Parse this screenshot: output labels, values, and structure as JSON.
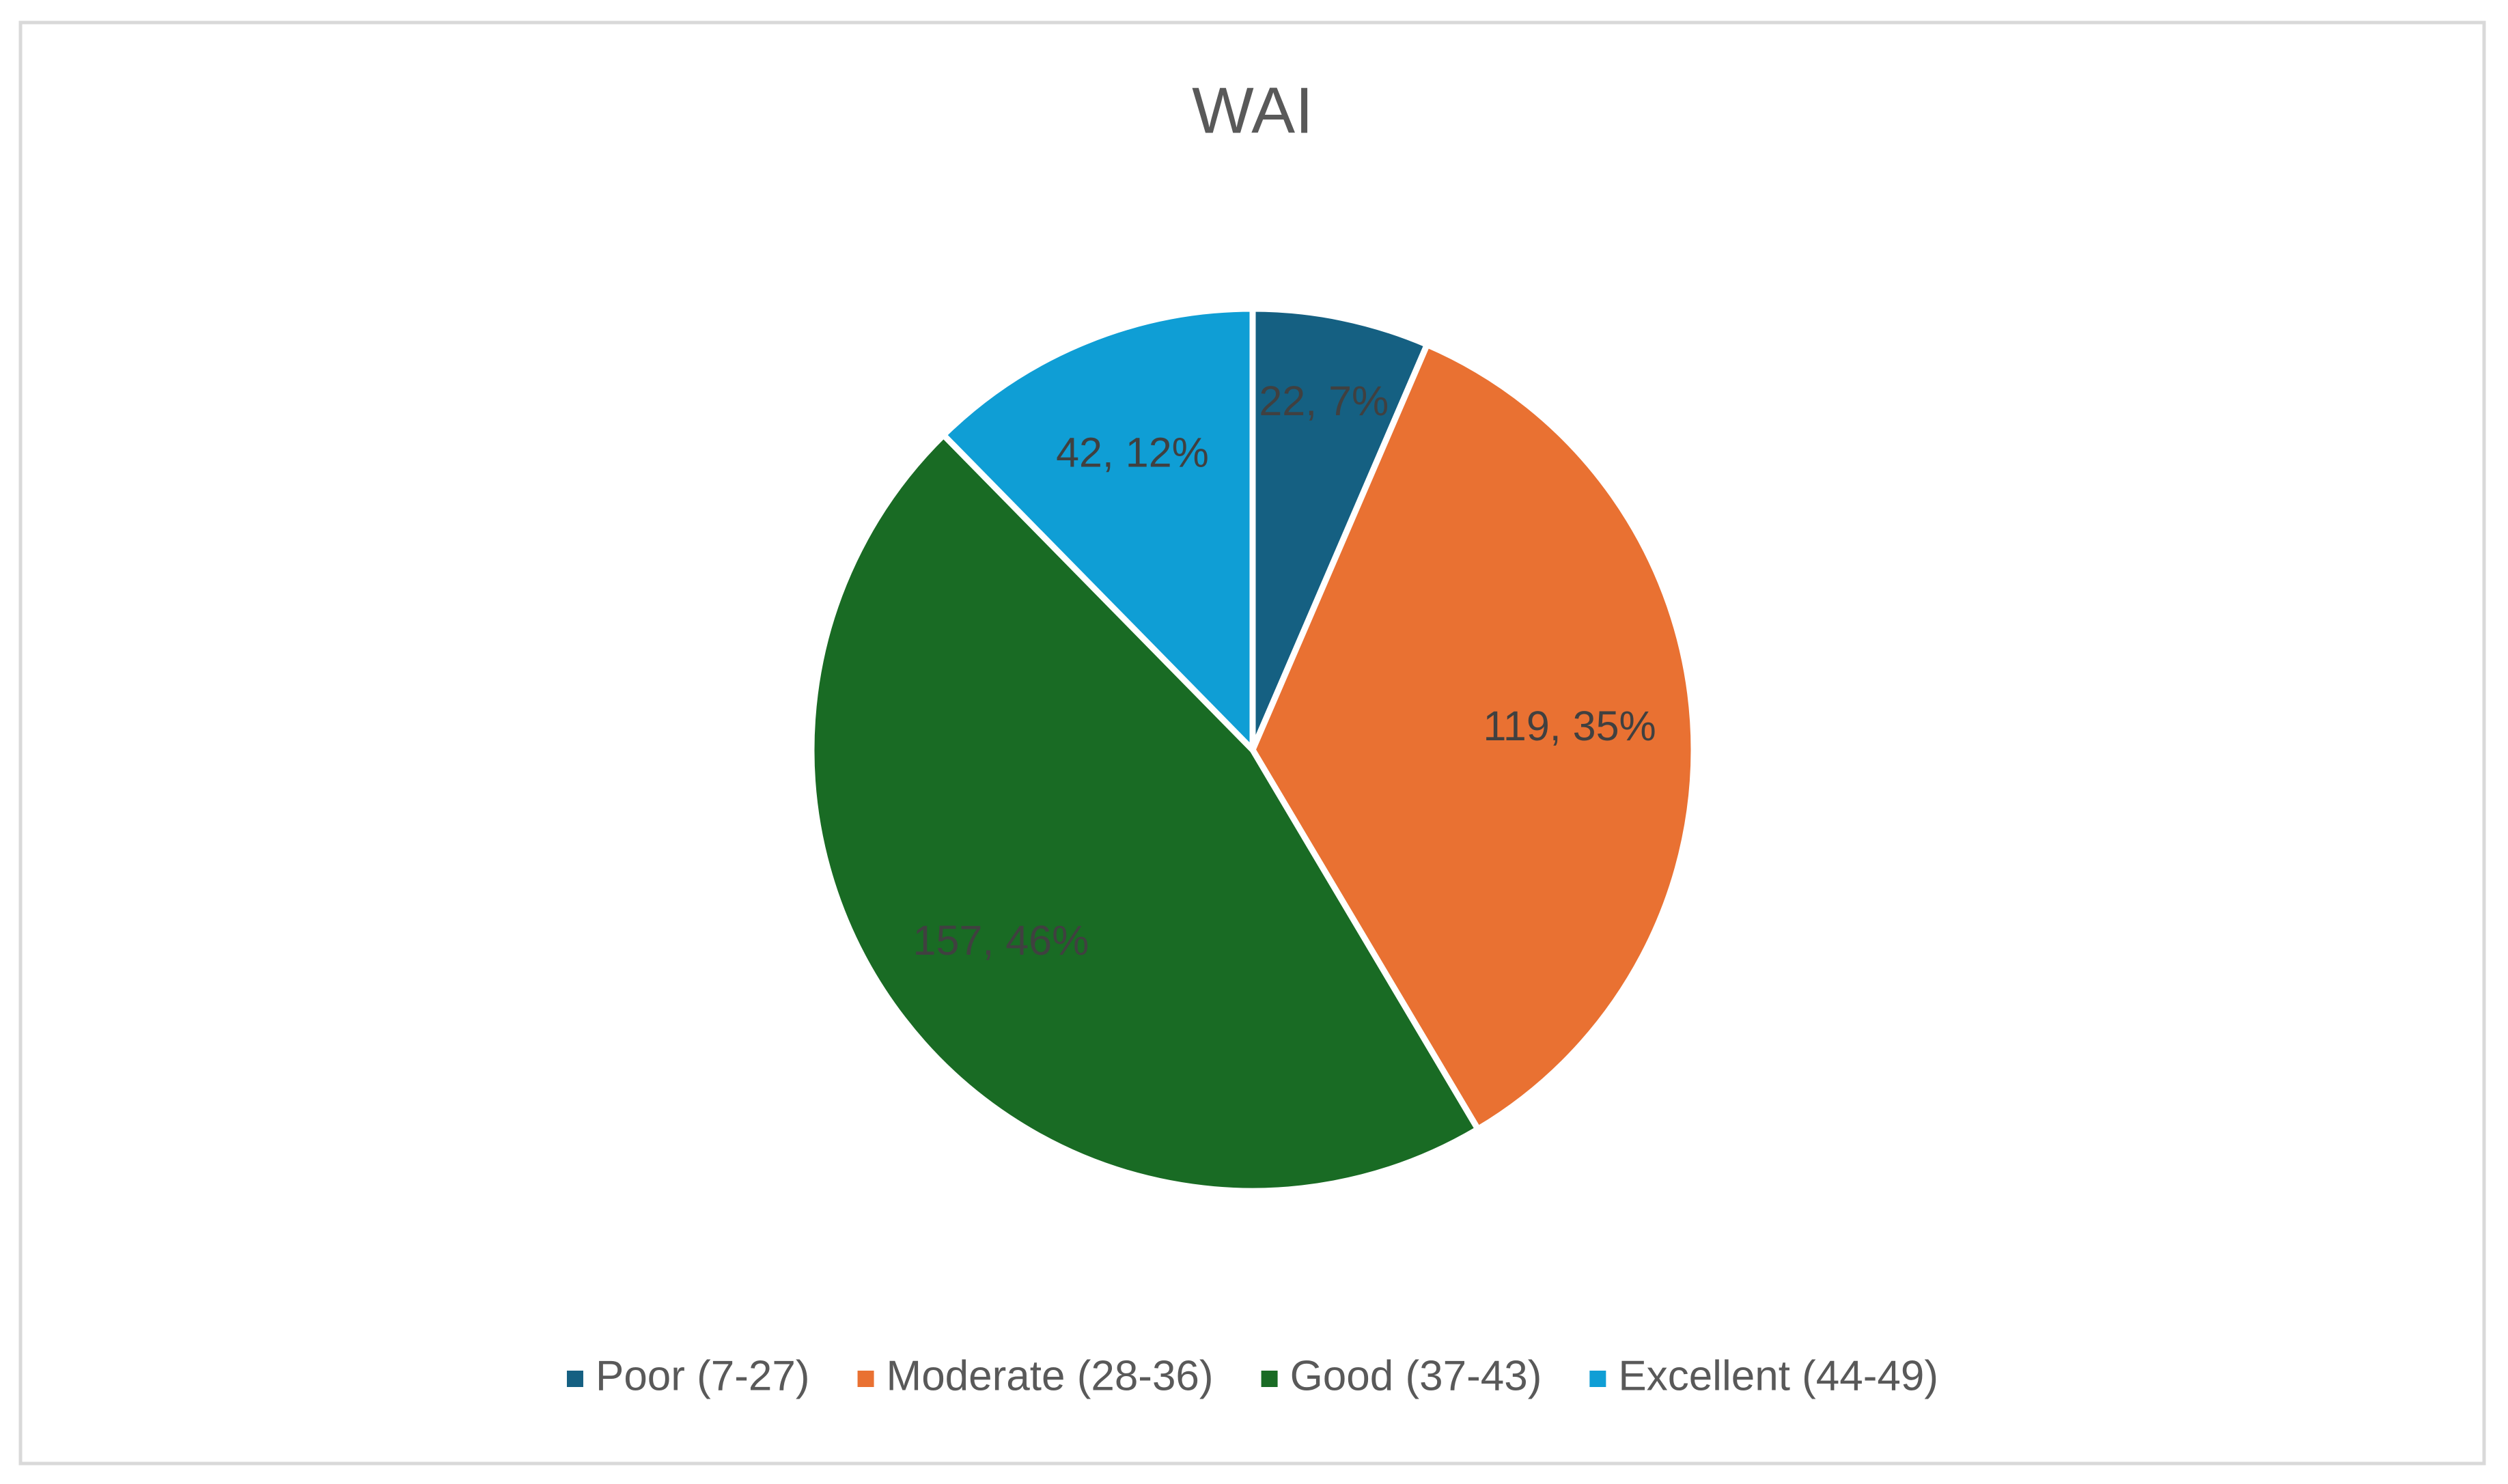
{
  "chart_data": {
    "type": "pie",
    "title": "WAI",
    "categories": [
      "Poor (7-27)",
      "Moderate (28-36)",
      "Good (37-43)",
      "Excellent (44-49)"
    ],
    "values": [
      22,
      119,
      157,
      42
    ],
    "value_labels": [
      "22, 7%",
      "119, 35%",
      "157, 46%",
      "42, 12%"
    ],
    "colors": [
      "#156082",
      "#E97132",
      "#196B24",
      "#0F9ED5"
    ],
    "legend": "bottom"
  }
}
